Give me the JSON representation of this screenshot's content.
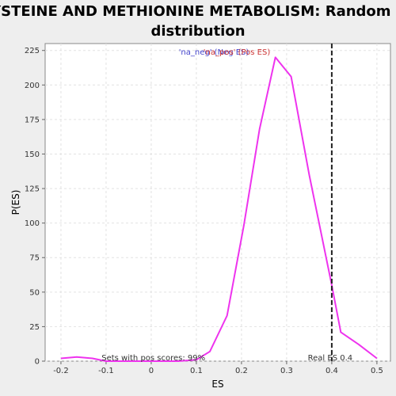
{
  "chart_data": {
    "type": "line",
    "title_lines": [
      "CYSTEINE AND METHIONINE METABOLISM: Random ES",
      "distribution"
    ],
    "xlabel": "ES",
    "ylabel": "P(ES)",
    "xlim": [
      -0.235,
      0.53
    ],
    "ylim": [
      0,
      230
    ],
    "x_ticks": [
      -0.2,
      -0.1,
      0.0,
      0.1,
      0.2,
      0.3,
      0.4,
      0.5
    ],
    "x_tick_labels": [
      "-0.2",
      "-0.1",
      "0",
      "0.1",
      "0.2",
      "0.3",
      "0.4",
      "0.5"
    ],
    "y_ticks": [
      0,
      25,
      50,
      75,
      100,
      125,
      150,
      175,
      200,
      225
    ],
    "y_tick_labels": [
      "0",
      "25",
      "50",
      "75",
      "100",
      "125",
      "150",
      "175",
      "200",
      "225"
    ],
    "grid": true,
    "legend_placement": "top-center",
    "legend": {
      "neg_label": "'na_neg' (Neg ES)",
      "pos_label": "'na_pos' (Pos ES)",
      "neg_color": "#4444cc",
      "pos_color": "#cc3333"
    },
    "series": [
      {
        "color": "#ee33ee",
        "x": [
          -0.2,
          -0.165,
          -0.13,
          -0.1,
          -0.06,
          0.0,
          0.06,
          0.1,
          0.13,
          0.168,
          0.205,
          0.24,
          0.275,
          0.31,
          0.35,
          0.4,
          0.42,
          0.46,
          0.5
        ],
        "y": [
          2,
          3,
          2,
          0,
          0,
          0,
          0,
          1,
          7,
          33,
          98,
          168,
          220,
          206,
          135,
          55,
          21,
          12,
          2
        ]
      }
    ],
    "real_es_value": 0.4,
    "real_es_color": "#222222",
    "annotations": {
      "sets_text": "Sets with pos scores: 99%",
      "real_es_text": "Real ES 0.4"
    }
  }
}
